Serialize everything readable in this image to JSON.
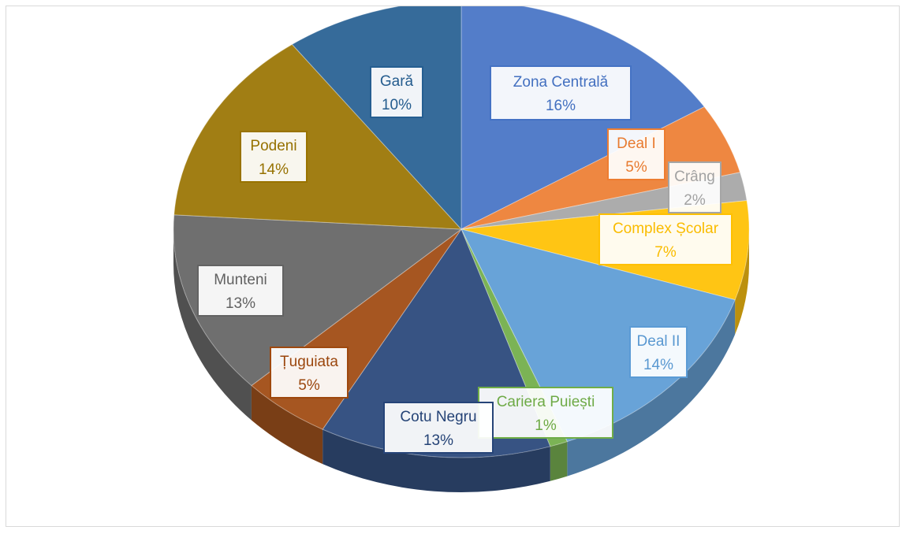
{
  "chart_data": {
    "type": "pie",
    "style": "3d-exploded-transparent",
    "title": "",
    "legend": "none",
    "slices": [
      {
        "label": "Zona Centrală",
        "value": 16,
        "percent_label": "16%",
        "color": "#4472C4"
      },
      {
        "label": "Deal I",
        "value": 5,
        "percent_label": "5%",
        "color": "#ED7D31"
      },
      {
        "label": "Crâng",
        "value": 2,
        "percent_label": "2%",
        "color": "#A5A5A5"
      },
      {
        "label": "Complex Școlar",
        "value": 7,
        "percent_label": "7%",
        "color": "#FFC000"
      },
      {
        "label": "Deal II",
        "value": 14,
        "percent_label": "14%",
        "color": "#5B9BD5"
      },
      {
        "label": "Cariera Puiești",
        "value": 1,
        "percent_label": "1%",
        "color": "#70AD47"
      },
      {
        "label": "Cotu Negru",
        "value": 13,
        "percent_label": "13%",
        "color": "#264478"
      },
      {
        "label": "Țuguiata",
        "value": 5,
        "percent_label": "5%",
        "color": "#9E480E"
      },
      {
        "label": "Munteni",
        "value": 13,
        "percent_label": "13%",
        "color": "#636363"
      },
      {
        "label": "Podeni",
        "value": 14,
        "percent_label": "14%",
        "color": "#997300"
      },
      {
        "label": "Gară",
        "value": 10,
        "percent_label": "10%",
        "color": "#255E91"
      }
    ]
  }
}
